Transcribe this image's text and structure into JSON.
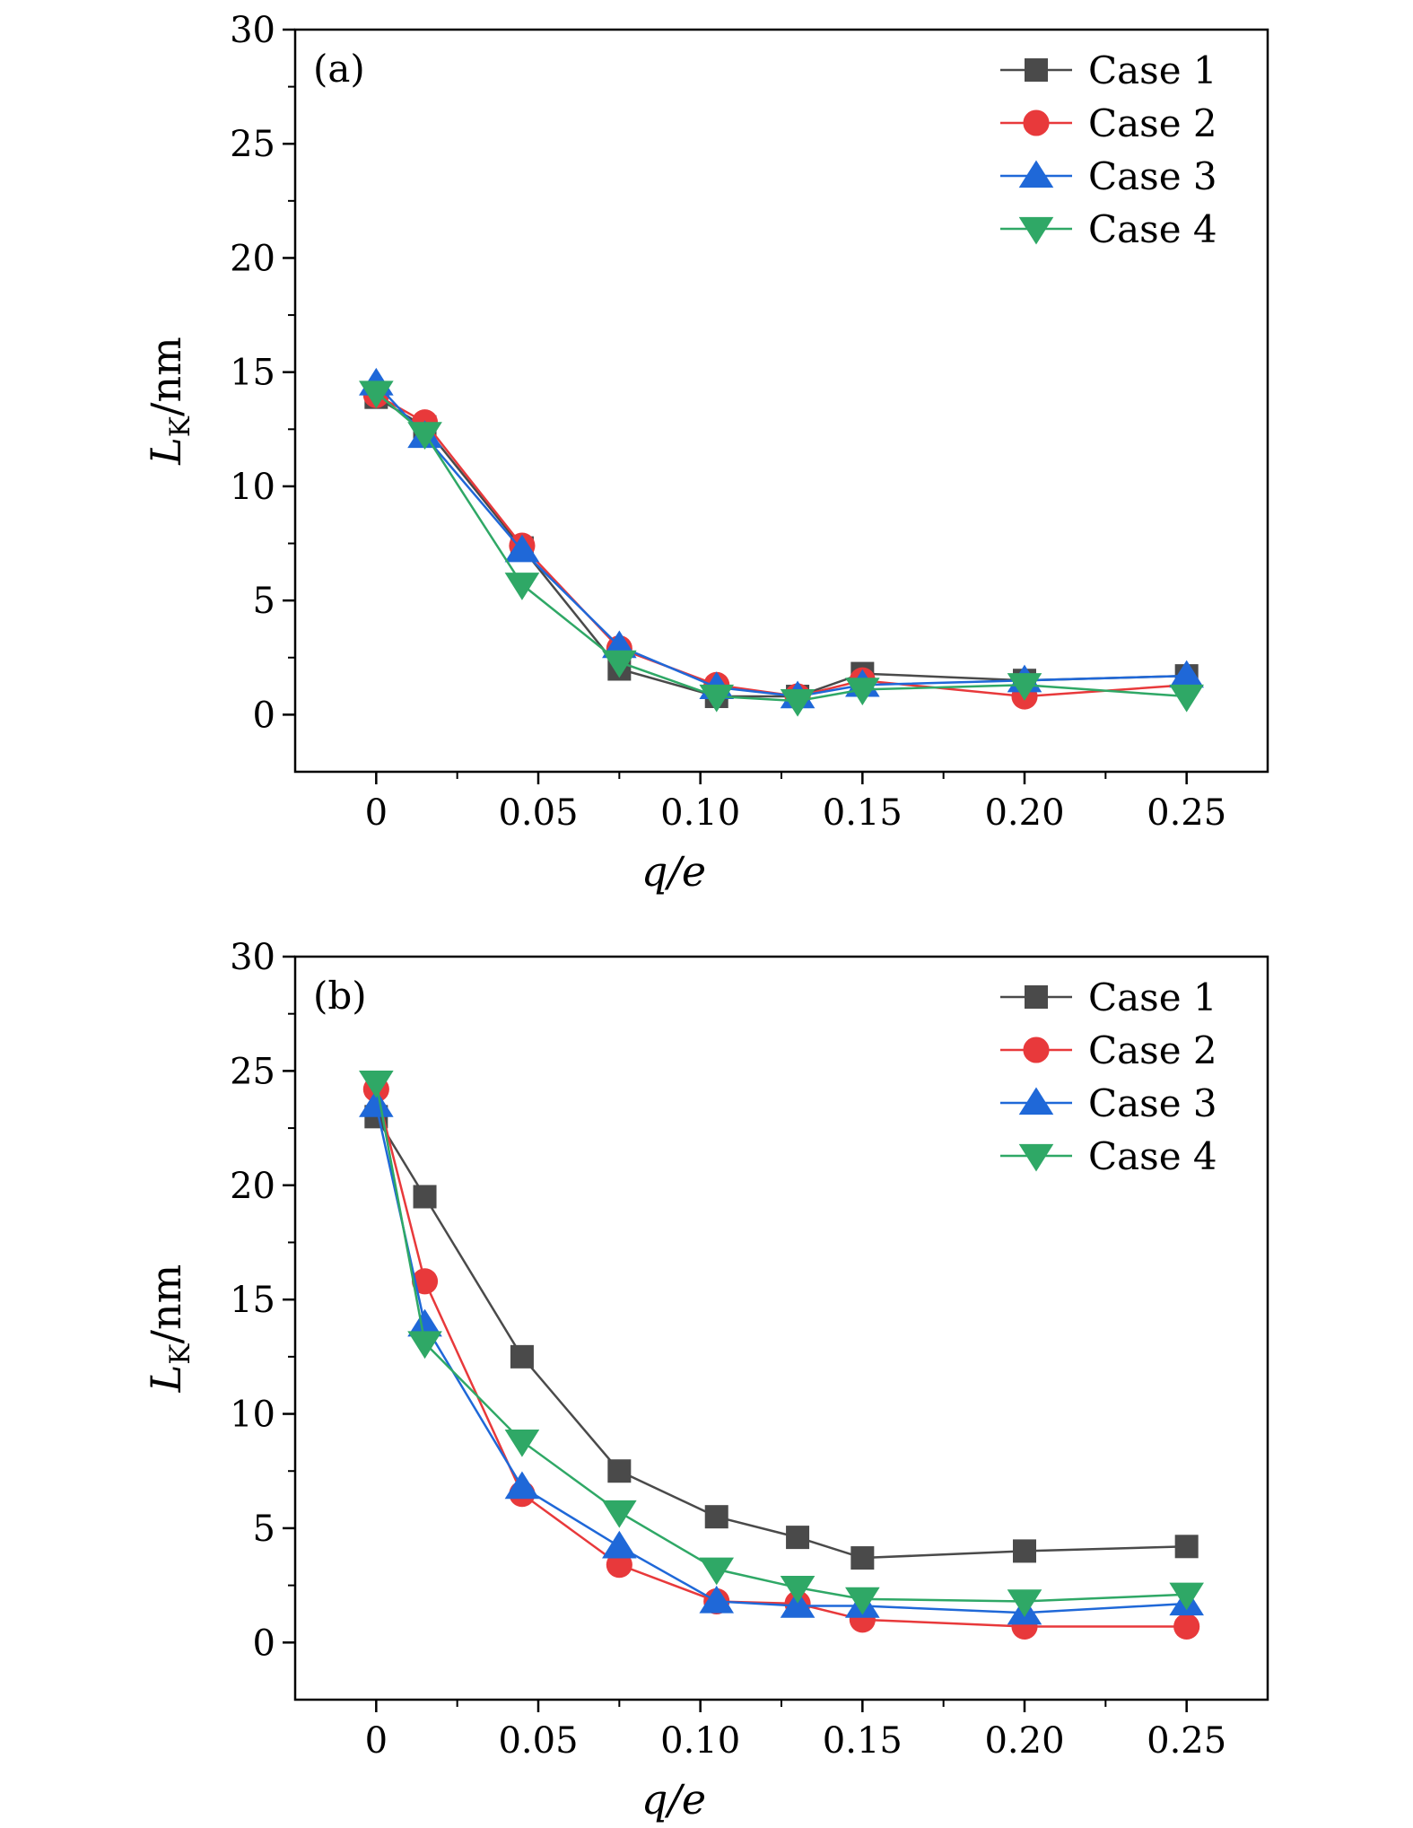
{
  "chart_data": [
    {
      "type": "line",
      "panel": "(a)",
      "xlabel": "q/e",
      "ylabel": "L_K/nm",
      "ylabel_main": "L",
      "ylabel_sub": "K",
      "ylabel_rest": "/nm",
      "xlabel_q": "q",
      "xlabel_rest": "/e",
      "xlim": [
        -0.025,
        0.275
      ],
      "ylim": [
        -2.5,
        30
      ],
      "x_ticks": [
        0,
        0.05,
        0.1,
        0.15,
        0.2,
        0.25
      ],
      "x_tick_labels": [
        "0",
        "0.05",
        "0.10",
        "0.15",
        "0.20",
        "0.25"
      ],
      "y_ticks": [
        0,
        5,
        10,
        15,
        20,
        25,
        30
      ],
      "y_tick_labels": [
        "0",
        "5",
        "10",
        "15",
        "20",
        "25",
        "30"
      ],
      "x": [
        0,
        0.015,
        0.045,
        0.075,
        0.105,
        0.13,
        0.15,
        0.2,
        0.25
      ],
      "legend_position": "top-right",
      "series": [
        {
          "name": "Case 1",
          "color": "#4a4a4a",
          "marker": "square",
          "values": [
            13.9,
            12.6,
            7.3,
            2.0,
            0.8,
            0.8,
            1.8,
            1.5,
            1.7
          ]
        },
        {
          "name": "Case 2",
          "color": "#e8393b",
          "marker": "circle",
          "values": [
            14.0,
            12.8,
            7.4,
            2.9,
            1.3,
            0.8,
            1.5,
            0.8,
            1.3
          ]
        },
        {
          "name": "Case 3",
          "color": "#1f68d8",
          "marker": "triangle-up",
          "values": [
            14.5,
            12.2,
            7.2,
            3.0,
            1.2,
            0.8,
            1.3,
            1.5,
            1.7
          ]
        },
        {
          "name": "Case 4",
          "color": "#2fa866",
          "marker": "triangle-down",
          "values": [
            14.1,
            12.3,
            5.7,
            2.3,
            0.8,
            0.6,
            1.1,
            1.3,
            0.8
          ]
        }
      ]
    },
    {
      "type": "line",
      "panel": "(b)",
      "xlabel": "q/e",
      "ylabel": "L_K/nm",
      "ylabel_main": "L",
      "ylabel_sub": "K",
      "ylabel_rest": "/nm",
      "xlabel_q": "q",
      "xlabel_rest": "/e",
      "xlim": [
        -0.025,
        0.275
      ],
      "ylim": [
        -2.5,
        30
      ],
      "x_ticks": [
        0,
        0.05,
        0.1,
        0.15,
        0.2,
        0.25
      ],
      "x_tick_labels": [
        "0",
        "0.05",
        "0.10",
        "0.15",
        "0.20",
        "0.25"
      ],
      "y_ticks": [
        0,
        5,
        10,
        15,
        20,
        25,
        30
      ],
      "y_tick_labels": [
        "0",
        "5",
        "10",
        "15",
        "20",
        "25",
        "30"
      ],
      "x": [
        0,
        0.015,
        0.045,
        0.075,
        0.105,
        0.13,
        0.15,
        0.2,
        0.25
      ],
      "legend_position": "top-right",
      "series": [
        {
          "name": "Case 1",
          "color": "#4a4a4a",
          "marker": "square",
          "values": [
            23.0,
            19.5,
            12.5,
            7.5,
            5.5,
            4.6,
            3.7,
            4.0,
            4.2
          ]
        },
        {
          "name": "Case 2",
          "color": "#e8393b",
          "marker": "circle",
          "values": [
            24.2,
            15.8,
            6.5,
            3.4,
            1.8,
            1.7,
            1.0,
            0.7,
            0.7
          ]
        },
        {
          "name": "Case 3",
          "color": "#1f68d8",
          "marker": "triangle-up",
          "values": [
            23.5,
            13.9,
            6.8,
            4.2,
            1.8,
            1.6,
            1.6,
            1.3,
            1.7
          ]
        },
        {
          "name": "Case 4",
          "color": "#2fa866",
          "marker": "triangle-down",
          "values": [
            24.5,
            13.1,
            8.8,
            5.7,
            3.2,
            2.4,
            1.9,
            1.8,
            2.1
          ]
        }
      ]
    }
  ]
}
